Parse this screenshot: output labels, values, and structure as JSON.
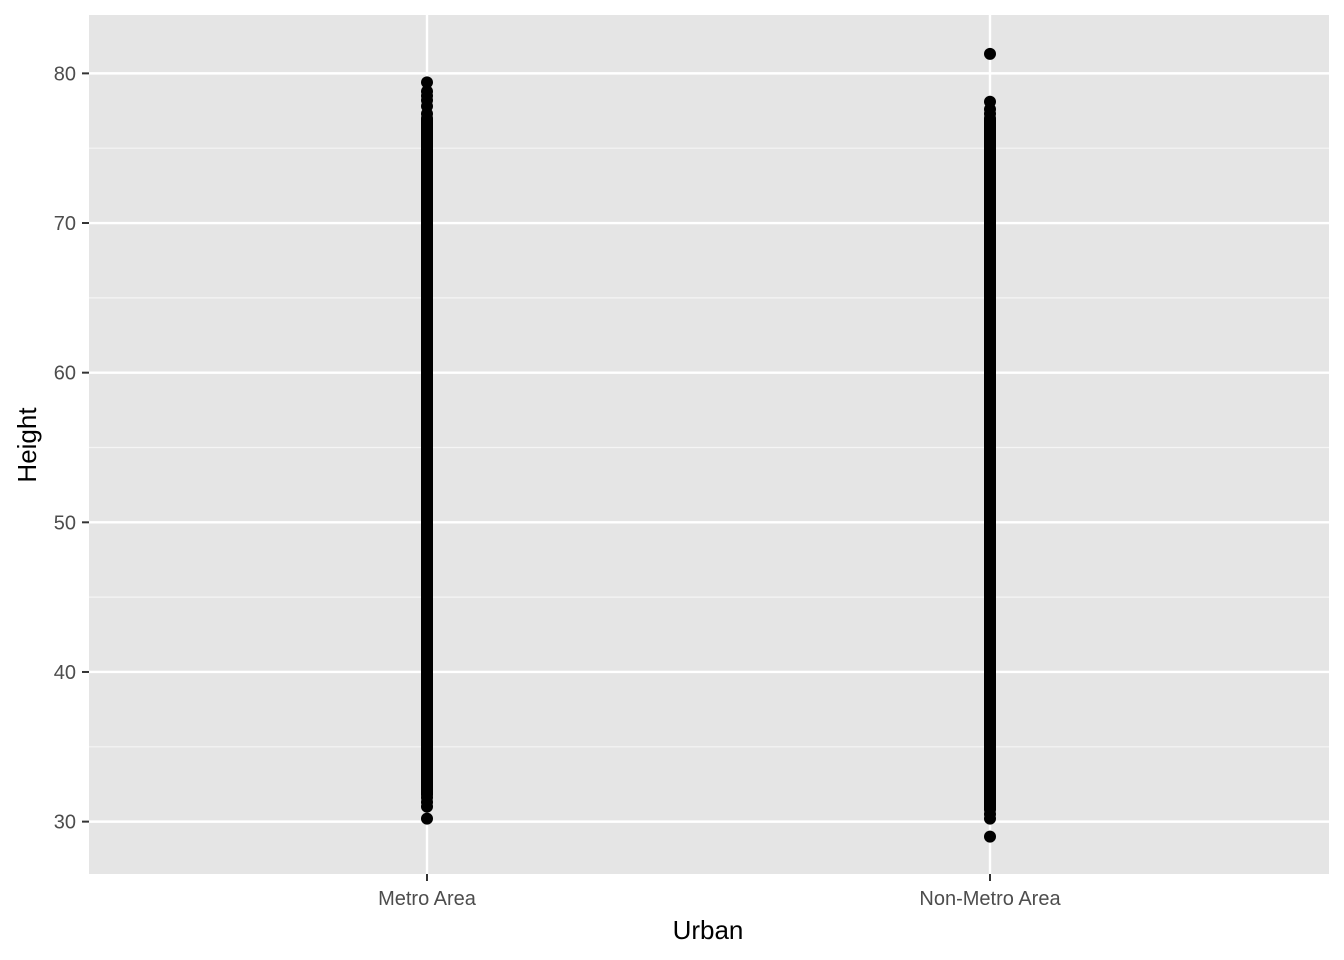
{
  "chart_data": {
    "type": "scatter",
    "xlabel": "Urban",
    "ylabel": "Height",
    "categories": [
      "Metro Area",
      "Non-Metro Area"
    ],
    "ylim": [
      26.5,
      83.9
    ],
    "y_ticks": [
      30,
      40,
      50,
      60,
      70,
      80
    ],
    "y_tick_labels": [
      "30",
      "40",
      "50",
      "60",
      "70",
      "80"
    ],
    "grid": true,
    "series": [
      {
        "category": "Metro Area",
        "dense_range": [
          31.8,
          77.0
        ],
        "points": [
          30.2,
          31.0,
          31.3,
          31.6,
          77.3,
          77.8,
          78.2,
          78.5,
          78.8,
          79.4
        ]
      },
      {
        "category": "Non-Metro Area",
        "dense_range": [
          30.8,
          77.0
        ],
        "points": [
          29.0,
          30.2,
          30.5,
          77.3,
          77.6,
          78.1,
          81.3
        ]
      }
    ],
    "colors": {
      "panel_background": "#e5e5e5",
      "grid_major": "#ffffff",
      "point": "#000000",
      "tick_label": "#4d4d4d",
      "tick_mark": "#333333"
    }
  }
}
